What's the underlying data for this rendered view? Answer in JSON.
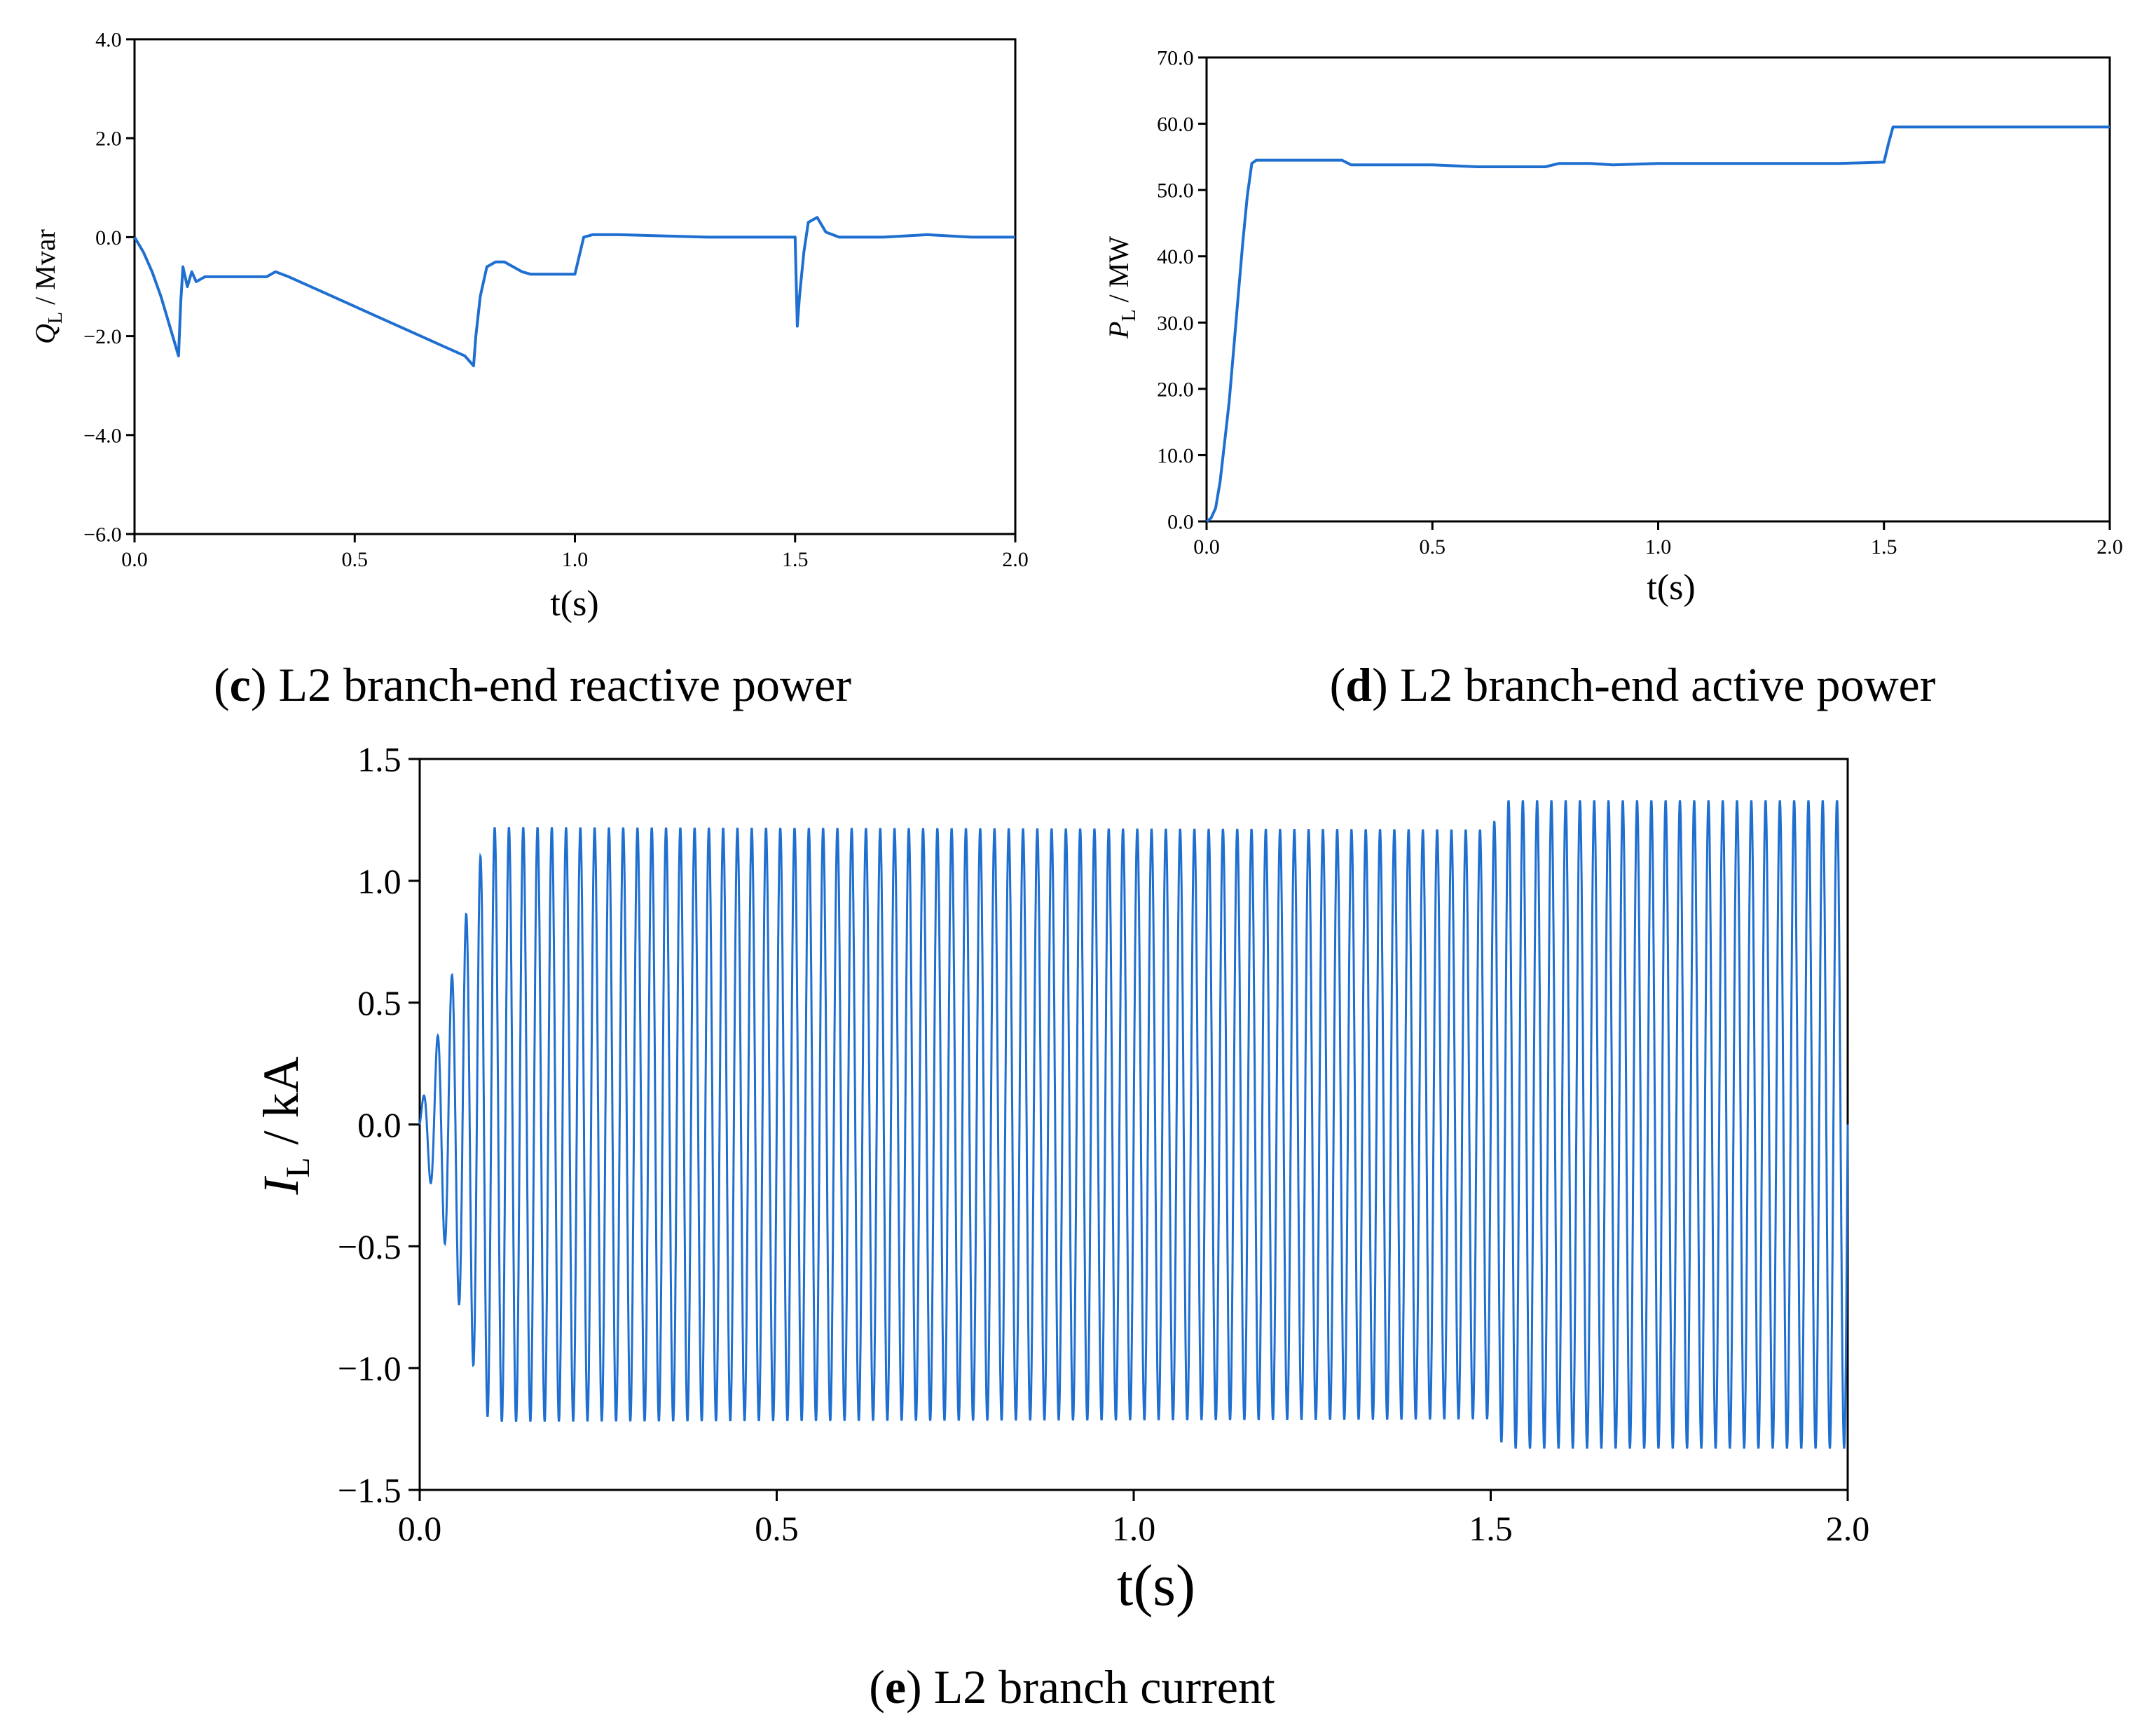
{
  "chart_data": [
    {
      "id": "c",
      "type": "line",
      "caption_letter": "c",
      "caption_text": " L2 branch-end reactive power",
      "xlabel": "t(s)",
      "ylabel_main": "Q",
      "ylabel_sub": "L",
      "ylabel_unit": " / Mvar",
      "xlim": [
        0.0,
        2.0
      ],
      "ylim": [
        -6.0,
        4.0
      ],
      "xticks": [
        0.0,
        0.5,
        1.0,
        1.5,
        2.0
      ],
      "xtick_labels": [
        "0.0",
        "0.5",
        "1.0",
        "1.5",
        "2.0"
      ],
      "yticks": [
        -6.0,
        -4.0,
        -2.0,
        0.0,
        2.0,
        4.0
      ],
      "ytick_labels": [
        "−6.0",
        "−4.0",
        "−2.0",
        "0.0",
        "2.0",
        "4.0"
      ],
      "series": [
        {
          "name": "QL",
          "color": "#1f6fd0",
          "x": [
            0.0,
            0.02,
            0.04,
            0.06,
            0.08,
            0.1,
            0.105,
            0.11,
            0.12,
            0.13,
            0.14,
            0.16,
            0.2,
            0.3,
            0.32,
            0.35,
            0.45,
            0.55,
            0.65,
            0.75,
            0.77,
            0.775,
            0.785,
            0.8,
            0.82,
            0.84,
            0.86,
            0.88,
            0.9,
            1.0,
            1.02,
            1.04,
            1.1,
            1.3,
            1.5,
            1.505,
            1.51,
            1.52,
            1.53,
            1.55,
            1.57,
            1.6,
            1.7,
            1.8,
            1.9,
            2.0
          ],
          "y": [
            0.0,
            -0.3,
            -0.7,
            -1.2,
            -1.8,
            -2.4,
            -1.3,
            -0.6,
            -1.0,
            -0.7,
            -0.9,
            -0.8,
            -0.8,
            -0.8,
            -0.7,
            -0.8,
            -1.2,
            -1.6,
            -2.0,
            -2.4,
            -2.6,
            -2.0,
            -1.2,
            -0.6,
            -0.5,
            -0.5,
            -0.6,
            -0.7,
            -0.75,
            -0.75,
            0.0,
            0.05,
            0.05,
            0.0,
            0.0,
            -1.8,
            -1.2,
            -0.3,
            0.3,
            0.4,
            0.1,
            0.0,
            0.0,
            0.05,
            0.0,
            0.0
          ]
        }
      ]
    },
    {
      "id": "d",
      "type": "line",
      "caption_letter": "d",
      "caption_text": " L2 branch-end active power",
      "xlabel": "t(s)",
      "ylabel_main": "P",
      "ylabel_sub": "L",
      "ylabel_unit": " / MW",
      "xlim": [
        0.0,
        2.0
      ],
      "ylim": [
        0.0,
        70.0
      ],
      "xticks": [
        0.0,
        0.5,
        1.0,
        1.5,
        2.0
      ],
      "xtick_labels": [
        "0.0",
        "0.5",
        "1.0",
        "1.5",
        "2.0"
      ],
      "yticks": [
        0.0,
        10.0,
        20.0,
        30.0,
        40.0,
        50.0,
        60.0,
        70.0
      ],
      "ytick_labels": [
        "0.0",
        "10.0",
        "20.0",
        "30.0",
        "40.0",
        "50.0",
        "60.0",
        "70.0"
      ],
      "series": [
        {
          "name": "PL",
          "color": "#1f6fd0",
          "x": [
            0.0,
            0.01,
            0.02,
            0.03,
            0.04,
            0.05,
            0.06,
            0.07,
            0.08,
            0.09,
            0.1,
            0.11,
            0.12,
            0.2,
            0.3,
            0.32,
            0.5,
            0.6,
            0.75,
            0.78,
            0.85,
            0.9,
            1.0,
            1.1,
            1.2,
            1.3,
            1.4,
            1.5,
            1.51,
            1.52,
            1.53,
            1.6,
            1.8,
            2.0
          ],
          "y": [
            0.0,
            0.5,
            2.0,
            6.0,
            12.0,
            18.0,
            26.0,
            34.0,
            42.0,
            49.0,
            54.0,
            54.5,
            54.5,
            54.5,
            54.5,
            53.8,
            53.8,
            53.5,
            53.5,
            54.0,
            54.0,
            53.8,
            54.0,
            54.0,
            54.0,
            54.0,
            54.0,
            54.2,
            57.0,
            59.5,
            59.5,
            59.5,
            59.5,
            59.5
          ]
        }
      ]
    },
    {
      "id": "e",
      "type": "line",
      "caption_letter": "e",
      "caption_text": " L2 branch current",
      "xlabel": "t(s)",
      "ylabel_main": "I",
      "ylabel_sub": "L",
      "ylabel_unit": " / kA",
      "xlim": [
        0.0,
        2.0
      ],
      "ylim": [
        -1.5,
        1.5
      ],
      "xticks": [
        0.0,
        0.5,
        1.0,
        1.5,
        2.0
      ],
      "xtick_labels": [
        "0.0",
        "0.5",
        "1.0",
        "1.5",
        "2.0"
      ],
      "yticks": [
        -1.5,
        -1.0,
        -0.5,
        0.0,
        0.5,
        1.0,
        1.5
      ],
      "ytick_labels": [
        "−1.5",
        "−1.0",
        "−0.5",
        "0.0",
        "0.5",
        "1.0",
        "1.5"
      ],
      "series": [
        {
          "name": "IL",
          "color": "#1f6fd0",
          "waveform": "sinusoid",
          "frequency_hz": 50,
          "envelope_t": [
            0.0,
            0.02,
            0.04,
            0.06,
            0.08,
            0.095,
            0.1,
            1.5,
            1.51,
            1.52,
            2.0
          ],
          "envelope_amp": [
            0.05,
            0.3,
            0.55,
            0.8,
            1.05,
            1.2,
            1.22,
            1.21,
            1.28,
            1.33,
            1.33
          ]
        }
      ]
    }
  ]
}
